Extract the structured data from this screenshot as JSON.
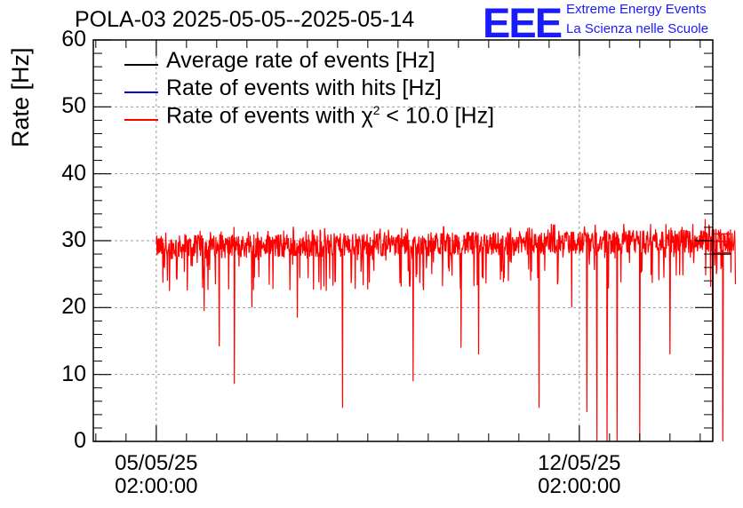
{
  "header": {
    "title": "POLA-03 2025-05-05--2025-05-14",
    "logo": "EEE",
    "logo_line1": "Extreme Energy Events",
    "logo_line2": "La Scienza nelle Scuole"
  },
  "colors": {
    "logo": "#1a1aff",
    "average": "#000000",
    "hits": "#0000cc",
    "chi2": "#ff0000",
    "grid": "#999999"
  },
  "chart_data": {
    "type": "line",
    "title": "POLA-03 2025-05-05--2025-05-14",
    "ylabel": "Rate [Hz]",
    "xlabel": "",
    "ylim": [
      0,
      60
    ],
    "y_ticks": [
      0,
      10,
      20,
      30,
      40,
      50,
      60
    ],
    "x_tick_labels": [
      {
        "date": "05/05/25",
        "time": "02:00:00"
      },
      {
        "date": "12/05/25",
        "time": "02:00:00"
      }
    ],
    "grid": true,
    "legend_placement": "top-left",
    "x_domain_days": [
      "2025-05-04 01:00",
      "2025-05-14 07:00"
    ],
    "series": [
      {
        "name": "Average rate of events [Hz]",
        "color": "#000000",
        "values": [
          28.0,
          28.0
        ]
      },
      {
        "name": "Rate of events with hits [Hz]",
        "color": "#0000cc",
        "values": [
          29.9,
          29.9
        ]
      },
      {
        "name_prefix": "Rate of events with ",
        "name_symbol": "χ",
        "name_sup": "2",
        "name_suffix": " < 10.0 [Hz]",
        "color": "#ff0000",
        "data_start": "2025-05-05 02:00",
        "data_end": "2025-05-14 16:00",
        "baseline_start": 29.0,
        "baseline_end": 30.0,
        "noise_band": [
          26.5,
          32.5
        ],
        "dips": [
          {
            "date": "2025-05-05 10:00",
            "value": 24.5
          },
          {
            "date": "2025-05-05 21:00",
            "value": 19.5
          },
          {
            "date": "2025-05-06 03:00",
            "value": 14.2
          },
          {
            "date": "2025-05-06 09:00",
            "value": 8.6
          },
          {
            "date": "2025-05-06 16:00",
            "value": 20.0
          },
          {
            "date": "2025-05-07 10:00",
            "value": 18.5
          },
          {
            "date": "2025-05-08 04:00",
            "value": 5.0
          },
          {
            "date": "2025-05-09 08:00",
            "value": 9.0
          },
          {
            "date": "2025-05-10 03:00",
            "value": 14.0
          },
          {
            "date": "2025-05-10 10:00",
            "value": 13.0
          },
          {
            "date": "2025-05-11 10:00",
            "value": 5.0
          },
          {
            "date": "2025-05-11 23:00",
            "value": 20.0
          },
          {
            "date": "2025-05-12 05:00",
            "value": 4.4
          },
          {
            "date": "2025-05-12 09:00",
            "value": 0.0
          },
          {
            "date": "2025-05-12 13:00",
            "value": 0.0
          },
          {
            "date": "2025-05-12 17:00",
            "value": 0.0
          },
          {
            "date": "2025-05-13 02:00",
            "value": 0.0
          },
          {
            "date": "2025-05-13 14:00",
            "value": 13.0
          },
          {
            "date": "2025-05-14 04:00",
            "value": 0.0
          },
          {
            "date": "2025-05-14 07:00",
            "value": 0.0
          },
          {
            "date": "2025-05-14 11:00",
            "value": 0.0
          }
        ],
        "spikes": [
          {
            "date": "2025-05-14 04:00",
            "value": 33.2
          }
        ],
        "tail_levels": [
          31.0,
          29.9,
          28.2
        ]
      }
    ]
  }
}
